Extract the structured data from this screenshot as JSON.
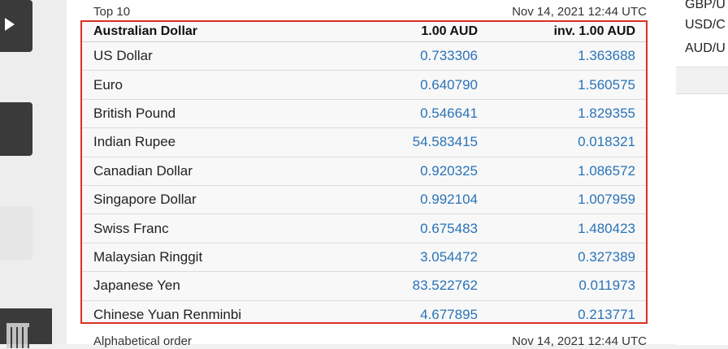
{
  "header": {
    "title": "Top 10",
    "timestamp": "Nov 14, 2021 12:44 UTC"
  },
  "rates": {
    "columns": [
      "Australian Dollar",
      "1.00 AUD",
      "inv. 1.00 AUD"
    ],
    "rows": [
      {
        "currency": "US Dollar",
        "rate": "0.733306",
        "inverse": "1.363688"
      },
      {
        "currency": "Euro",
        "rate": "0.640790",
        "inverse": "1.560575"
      },
      {
        "currency": "British Pound",
        "rate": "0.546641",
        "inverse": "1.829355"
      },
      {
        "currency": "Indian Rupee",
        "rate": "54.583415",
        "inverse": "0.018321"
      },
      {
        "currency": "Canadian Dollar",
        "rate": "0.920325",
        "inverse": "1.086572"
      },
      {
        "currency": "Singapore Dollar",
        "rate": "0.992104",
        "inverse": "1.007959"
      },
      {
        "currency": "Swiss Franc",
        "rate": "0.675483",
        "inverse": "1.480423"
      },
      {
        "currency": "Malaysian Ringgit",
        "rate": "3.054472",
        "inverse": "0.327389"
      },
      {
        "currency": "Japanese Yen",
        "rate": "83.522762",
        "inverse": "0.011973"
      },
      {
        "currency": "Chinese Yuan Renminbi",
        "rate": "4.677895",
        "inverse": "0.213771"
      }
    ]
  },
  "footer": {
    "title": "Alphabetical order",
    "timestamp": "Nov 14, 2021 12:44 UTC"
  },
  "sidebar": {
    "pairs": [
      "GBP/U",
      "USD/C",
      "AUD/U"
    ]
  },
  "colors": {
    "highlight_border": "#d93025",
    "value_link": "#2a73b8"
  },
  "icons": {
    "left_rail": [
      "play-icon",
      "calendar-icon"
    ]
  }
}
